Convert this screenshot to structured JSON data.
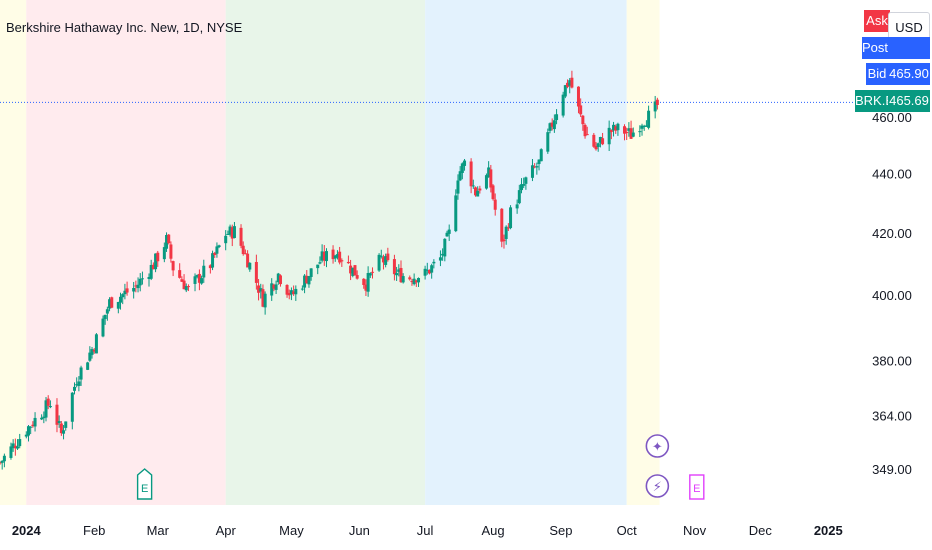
{
  "header": {
    "title": "Berkshire Hathaway Inc. New, 1D, NYSE"
  },
  "currency": "USD",
  "price_tags": {
    "ask": {
      "label": "Ask",
      "value": ""
    },
    "post": {
      "label": "Post",
      "value": ""
    },
    "bid": {
      "label": "Bid",
      "value": "465.90"
    },
    "last": {
      "label": "BRK.B",
      "value": "465.69"
    }
  },
  "colors": {
    "up": "#089981",
    "down": "#f23645",
    "ask": "#f23645",
    "post": "#2962ff",
    "bid": "#2962ff",
    "last": "#089981",
    "price_line": "#2962ff",
    "event_earnings": "#089981",
    "event_split": "#7e57c2",
    "event_dividend": "#7e57c2",
    "event_future_earnings": "#e040fb"
  },
  "chart_data": {
    "type": "candlestick",
    "title": "Berkshire Hathaway Inc. New, 1D, NYSE",
    "y_axis": {
      "ticks": [
        349,
        364,
        380,
        400,
        420,
        440,
        460
      ],
      "tick_labels": [
        "349.00",
        "364.00",
        "380.00",
        "400.00",
        "420.00",
        "440.00",
        "460.00"
      ],
      "scale": "log"
    },
    "x_axis": {
      "ticks": [
        "2024",
        "Feb",
        "Mar",
        "Apr",
        "May",
        "Jun",
        "Jul",
        "Aug",
        "Sep",
        "Oct",
        "Nov",
        "Dec",
        "2025"
      ]
    },
    "x_range": [
      "2023-12-20",
      "2025-01-10"
    ],
    "current_price": 465.69,
    "background_periods": [
      {
        "start": "2023-12-20",
        "end": "2024-01-01",
        "color": "#fffde7"
      },
      {
        "start": "2024-01-01",
        "end": "2024-04-01",
        "color": "#ffebee"
      },
      {
        "start": "2024-04-01",
        "end": "2024-07-01",
        "color": "#e8f5e9"
      },
      {
        "start": "2024-07-01",
        "end": "2024-10-01",
        "color": "#e3f2fd"
      },
      {
        "start": "2024-10-01",
        "end": "2024-10-16",
        "color": "#fffde7"
      }
    ],
    "events": [
      {
        "type": "earnings",
        "date": "2024-02-24",
        "label": "E"
      },
      {
        "type": "split",
        "date": "2024-10-15",
        "label": "✦"
      },
      {
        "type": "dividend",
        "date": "2024-10-15",
        "label": "⚡"
      },
      {
        "type": "earnings-upcoming",
        "date": "2024-11-02",
        "label": "E"
      }
    ],
    "series": [
      {
        "name": "BRK.B",
        "points": [
          {
            "date": "2023-12-20",
            "close": 351
          },
          {
            "date": "2024-01-02",
            "close": 361
          },
          {
            "date": "2024-01-12",
            "close": 368
          },
          {
            "date": "2024-01-17",
            "close": 359
          },
          {
            "date": "2024-01-24",
            "close": 375
          },
          {
            "date": "2024-02-01",
            "close": 385
          },
          {
            "date": "2024-02-08",
            "close": 398
          },
          {
            "date": "2024-02-20",
            "close": 403
          },
          {
            "date": "2024-02-28",
            "close": 410
          },
          {
            "date": "2024-03-05",
            "close": 418
          },
          {
            "date": "2024-03-08",
            "close": 409
          },
          {
            "date": "2024-03-15",
            "close": 402
          },
          {
            "date": "2024-03-25",
            "close": 410
          },
          {
            "date": "2024-04-01",
            "close": 420
          },
          {
            "date": "2024-04-05",
            "close": 421
          },
          {
            "date": "2024-04-12",
            "close": 410
          },
          {
            "date": "2024-04-18",
            "close": 399
          },
          {
            "date": "2024-04-25",
            "close": 407
          },
          {
            "date": "2024-05-01",
            "close": 400
          },
          {
            "date": "2024-05-08",
            "close": 406
          },
          {
            "date": "2024-05-15",
            "close": 412
          },
          {
            "date": "2024-05-22",
            "close": 414
          },
          {
            "date": "2024-05-28",
            "close": 409
          },
          {
            "date": "2024-06-04",
            "close": 404
          },
          {
            "date": "2024-06-11",
            "close": 412
          },
          {
            "date": "2024-06-18",
            "close": 407
          },
          {
            "date": "2024-06-24",
            "close": 406
          },
          {
            "date": "2024-07-01",
            "close": 407
          },
          {
            "date": "2024-07-08",
            "close": 412
          },
          {
            "date": "2024-07-12",
            "close": 420
          },
          {
            "date": "2024-07-16",
            "close": 440
          },
          {
            "date": "2024-07-19",
            "close": 444
          },
          {
            "date": "2024-07-24",
            "close": 434
          },
          {
            "date": "2024-07-30",
            "close": 440
          },
          {
            "date": "2024-08-05",
            "close": 416
          },
          {
            "date": "2024-08-09",
            "close": 427
          },
          {
            "date": "2024-08-16",
            "close": 438
          },
          {
            "date": "2024-08-22",
            "close": 444
          },
          {
            "date": "2024-08-28",
            "close": 458
          },
          {
            "date": "2024-09-02",
            "close": 470
          },
          {
            "date": "2024-09-05",
            "close": 474
          },
          {
            "date": "2024-09-09",
            "close": 463
          },
          {
            "date": "2024-09-12",
            "close": 455
          },
          {
            "date": "2024-09-17",
            "close": 449
          },
          {
            "date": "2024-09-22",
            "close": 455
          },
          {
            "date": "2024-09-28",
            "close": 456
          },
          {
            "date": "2024-10-03",
            "close": 454
          },
          {
            "date": "2024-10-08",
            "close": 459
          },
          {
            "date": "2024-10-12",
            "close": 461
          },
          {
            "date": "2024-10-16",
            "close": 465.69
          }
        ]
      }
    ]
  }
}
